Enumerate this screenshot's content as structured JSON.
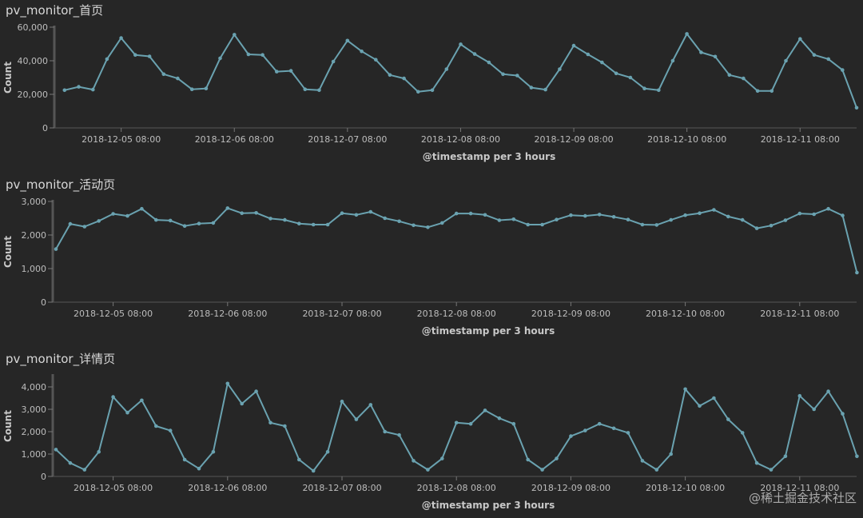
{
  "watermark": "@稀土掘金技术社区",
  "style": {
    "line_color": "#6aa2b0",
    "axis_color": "#555555",
    "background": "#262626"
  },
  "chart_data": [
    {
      "type": "line",
      "title": "pv_monitor_首页",
      "xlabel": "@timestamp per 3 hours",
      "ylabel": "Count",
      "ylim": [
        0,
        60000
      ],
      "yticks": [
        0,
        20000,
        40000,
        60000
      ],
      "ytick_labels": [
        "0",
        "20,000",
        "40,000",
        "60,000"
      ],
      "xticks": [
        4,
        12,
        20,
        28,
        36,
        44,
        52
      ],
      "xtick_labels": [
        "2018-12-05 08:00",
        "2018-12-06 08:00",
        "2018-12-07 08:00",
        "2018-12-08 08:00",
        "2018-12-09 08:00",
        "2018-12-10 08:00",
        "2018-12-11 08:00"
      ],
      "x_start": -0.5,
      "series": [
        {
          "name": "Count",
          "values": [
            22500,
            24500,
            22800,
            41000,
            53500,
            43500,
            42600,
            32000,
            29500,
            23000,
            23500,
            41500,
            55500,
            43800,
            43500,
            33500,
            34000,
            23000,
            22500,
            39500,
            52000,
            45600,
            40600,
            31500,
            29500,
            21500,
            22500,
            35000,
            49800,
            44000,
            39000,
            32000,
            31200,
            24000,
            22800,
            35000,
            49000,
            43800,
            39000,
            32500,
            30000,
            23500,
            22500,
            40000,
            56000,
            45000,
            42500,
            31500,
            29500,
            22000,
            22000,
            40000,
            53000,
            43500,
            41000,
            34500,
            12000
          ]
        }
      ]
    },
    {
      "type": "line",
      "title": "pv_monitor_活动页",
      "xlabel": "@timestamp per 3 hours",
      "ylabel": "Count",
      "ylim": [
        0,
        3000
      ],
      "yticks": [
        0,
        1000,
        2000,
        3000
      ],
      "ytick_labels": [
        "0",
        "1,000",
        "2,000",
        "3,000"
      ],
      "xticks": [
        4,
        12,
        20,
        28,
        36,
        44,
        52
      ],
      "xtick_labels": [
        "2018-12-05 08:00",
        "2018-12-06 08:00",
        "2018-12-07 08:00",
        "2018-12-08 08:00",
        "2018-12-09 08:00",
        "2018-12-10 08:00",
        "2018-12-11 08:00"
      ],
      "x_start": 0,
      "series": [
        {
          "name": "Count",
          "values": [
            1580,
            2330,
            2250,
            2420,
            2630,
            2570,
            2780,
            2450,
            2430,
            2270,
            2340,
            2360,
            2800,
            2650,
            2660,
            2490,
            2450,
            2340,
            2310,
            2310,
            2650,
            2600,
            2690,
            2500,
            2410,
            2290,
            2230,
            2360,
            2640,
            2640,
            2600,
            2440,
            2470,
            2310,
            2310,
            2460,
            2590,
            2570,
            2610,
            2540,
            2460,
            2310,
            2300,
            2450,
            2590,
            2650,
            2750,
            2550,
            2450,
            2200,
            2280,
            2440,
            2640,
            2620,
            2780,
            2580,
            880
          ]
        }
      ]
    },
    {
      "type": "line",
      "title": "pv_monitor_详情页",
      "xlabel": "@timestamp per 3 hours",
      "ylabel": "Count",
      "ylim": [
        0,
        4500
      ],
      "yticks": [
        0,
        1000,
        2000,
        3000,
        4000
      ],
      "ytick_labels": [
        "0",
        "1,000",
        "2,000",
        "3,000",
        "4,000"
      ],
      "xticks": [
        4,
        12,
        20,
        28,
        36,
        44,
        52
      ],
      "xtick_labels": [
        "2018-12-05 08:00",
        "2018-12-06 08:00",
        "2018-12-07 08:00",
        "2018-12-08 08:00",
        "2018-12-09 08:00",
        "2018-12-10 08:00",
        "2018-12-11 08:00"
      ],
      "x_start": 0,
      "series": [
        {
          "name": "Count",
          "values": [
            1200,
            600,
            300,
            1100,
            3550,
            2850,
            3400,
            2250,
            2050,
            750,
            350,
            1100,
            4150,
            3250,
            3800,
            2400,
            2250,
            750,
            250,
            1100,
            3350,
            2550,
            3200,
            2000,
            1850,
            700,
            300,
            800,
            2400,
            2350,
            2950,
            2600,
            2350,
            750,
            300,
            800,
            1800,
            2050,
            2350,
            2150,
            1950,
            700,
            300,
            1000,
            3900,
            3150,
            3500,
            2550,
            1950,
            600,
            300,
            900,
            3600,
            3000,
            3800,
            2800,
            900
          ]
        }
      ]
    }
  ]
}
